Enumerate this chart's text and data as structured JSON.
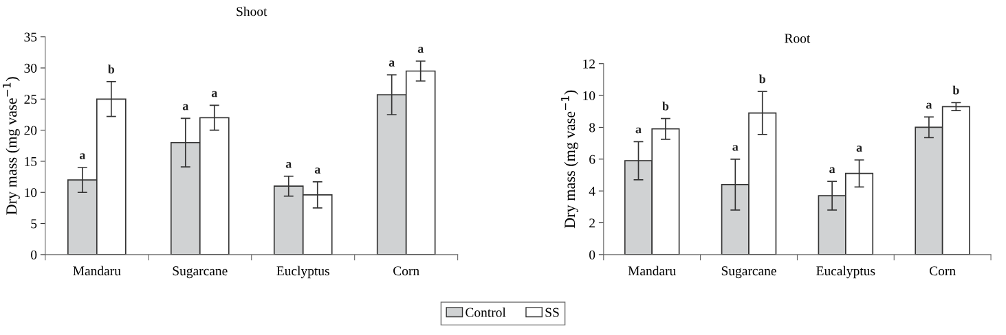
{
  "chart_data": [
    {
      "type": "bar",
      "title": "Shoot",
      "ylabel": "Dry mass (mg vase$^{−1}$)",
      "categories": [
        "Mandaru",
        "Sugarcane",
        "Euclyptus",
        "Corn"
      ],
      "ylim": [
        0,
        35
      ],
      "yticks": [
        0,
        5,
        10,
        15,
        20,
        25,
        30,
        35
      ],
      "legend": "bottom",
      "series": [
        {
          "name": "Control",
          "color": "#d0d2d3",
          "values": [
            12,
            18,
            11,
            25.7
          ],
          "errors": [
            2,
            3.9,
            1.6,
            3.2
          ],
          "value_labels": [
            "a",
            "a",
            "a",
            "a"
          ]
        },
        {
          "name": "SS",
          "color": "#ffffff",
          "values": [
            25,
            22,
            9.6,
            29.5
          ],
          "errors": [
            2.8,
            2,
            2.1,
            1.6
          ],
          "value_labels": [
            "b",
            "a",
            "a",
            "a"
          ]
        }
      ]
    },
    {
      "type": "bar",
      "title": "Root",
      "ylabel": "Dry mass (mg vase$^{−1}$)",
      "categories": [
        "Mandaru",
        "Sugarcane",
        "Eucalyptus",
        "Corn"
      ],
      "ylim": [
        0,
        12
      ],
      "yticks": [
        0,
        2,
        4,
        6,
        8,
        10,
        12
      ],
      "series": [
        {
          "color": "#d0d2d3",
          "values": [
            5.9,
            4.4,
            3.7,
            8
          ],
          "errors": [
            1.2,
            1.6,
            0.9,
            0.65
          ],
          "value_labels": [
            "a",
            "a",
            "a",
            "a"
          ]
        },
        {
          "color": "#ffffff",
          "values": [
            7.9,
            8.9,
            5.1,
            9.3
          ],
          "errors": [
            0.65,
            1.35,
            0.85,
            0.25
          ],
          "value_labels": [
            "b",
            "b",
            "a",
            "b"
          ]
        }
      ]
    }
  ]
}
